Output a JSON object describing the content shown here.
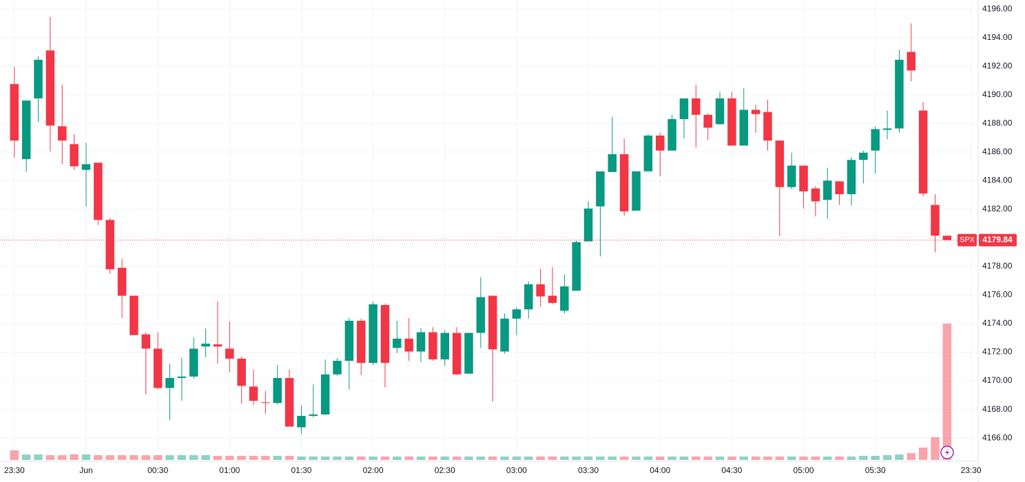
{
  "chart_data": {
    "type": "candlestick",
    "symbol": "SPX",
    "last_price": 4179.84,
    "up_color": "#089981",
    "down_color": "#f23645",
    "grid": true,
    "xlim": [
      -1.2,
      80.6
    ],
    "xticks": [
      {
        "value": 0,
        "label": "23:30"
      },
      {
        "value": 6,
        "label": "Jun"
      },
      {
        "value": 12,
        "label": "00:30"
      },
      {
        "value": 18,
        "label": "01:00"
      },
      {
        "value": 24,
        "label": "01:30"
      },
      {
        "value": 30,
        "label": "02:00"
      },
      {
        "value": 36,
        "label": "02:30"
      },
      {
        "value": 42,
        "label": "03:00"
      },
      {
        "value": 48,
        "label": "03:30"
      },
      {
        "value": 54,
        "label": "04:00"
      },
      {
        "value": 60,
        "label": "04:30"
      },
      {
        "value": 66,
        "label": "05:00"
      },
      {
        "value": 72,
        "label": "05:30"
      },
      {
        "value": 80,
        "label": "23:30"
      }
    ],
    "ylim": [
      4164.37,
      4196.63
    ],
    "yticks": [
      {
        "value": 4166,
        "label": "4166.00"
      },
      {
        "value": 4168,
        "label": "4168.00"
      },
      {
        "value": 4170,
        "label": "4170.00"
      },
      {
        "value": 4172,
        "label": "4172.00"
      },
      {
        "value": 4174,
        "label": "4174.00"
      },
      {
        "value": 4176,
        "label": "4176.00"
      },
      {
        "value": 4178,
        "label": "4178.00"
      },
      {
        "value": 4180,
        "label": "4180.00"
      },
      {
        "value": 4182,
        "label": "4182.00"
      },
      {
        "value": 4184,
        "label": "4184.00"
      },
      {
        "value": 4186,
        "label": "4186.00"
      },
      {
        "value": 4188,
        "label": "4188.00"
      },
      {
        "value": 4190,
        "label": "4190.00"
      },
      {
        "value": 4192,
        "label": "4192.00"
      },
      {
        "value": 4194,
        "label": "4194.00"
      },
      {
        "value": 4196,
        "label": "4196.00"
      }
    ],
    "open": [
      4190.75,
      4185.5,
      4189.75,
      4193.1,
      4187.8,
      4186.55,
      4184.75,
      4185.25,
      4181.25,
      4177.9,
      4175.95,
      4173.25,
      4172.25,
      4169.5,
      4170.2,
      4170.3,
      4172.4,
      4172.55,
      4172.25,
      4171.55,
      4169.6,
      4168.5,
      4168.45,
      4170.2,
      4166.75,
      4167.55,
      4167.65,
      4170.45,
      4171.4,
      4174.2,
      4171.25,
      4175.3,
      4172.3,
      4172.95,
      4172.05,
      4173.4,
      4171.5,
      4173.35,
      4170.5,
      4173.35,
      4175.95,
      4172.05,
      4174.35,
      4175.0,
      4176.75,
      4175.95,
      4174.9,
      4176.3,
      4179.75,
      4182.2,
      4184.6,
      4185.85,
      4181.9,
      4184.65,
      4187.15,
      4186.1,
      4188.3,
      4189.75,
      4188.6,
      4187.95,
      4189.75,
      4186.45,
      4188.95,
      4188.8,
      4186.8,
      4183.55,
      4185.05,
      4183.45,
      4182.65,
      4183.95,
      4183.05,
      4185.45,
      4186.1,
      4187.55,
      4187.65,
      4193.0,
      4188.9,
      4182.3,
      4180.15
    ],
    "high": [
      4191.95,
      4189.6,
      4192.7,
      4195.45,
      4190.7,
      4187.25,
      4186.65,
      4185.25,
      4181.4,
      4178.55,
      4175.95,
      4173.4,
      4173.4,
      4171.2,
      4171.6,
      4173.05,
      4173.65,
      4175.55,
      4174.15,
      4171.7,
      4170.8,
      4169.3,
      4171.1,
      4170.8,
      4168.3,
      4169.75,
      4171.5,
      4171.6,
      4174.4,
      4174.35,
      4175.55,
      4175.4,
      4174.2,
      4174.4,
      4173.7,
      4173.75,
      4173.55,
      4173.75,
      4173.35,
      4177.25,
      4175.95,
      4174.7,
      4175.15,
      4176.95,
      4177.85,
      4177.95,
      4177.45,
      4179.8,
      4182.55,
      4184.65,
      4188.45,
      4186.95,
      4184.65,
      4187.25,
      4187.35,
      4188.6,
      4189.75,
      4190.7,
      4188.7,
      4190.2,
      4190.2,
      4190.45,
      4189.3,
      4189.65,
      4186.8,
      4185.95,
      4185.05,
      4183.6,
      4184.9,
      4183.95,
      4185.65,
      4186.1,
      4187.8,
      4188.9,
      4193.15,
      4195.0,
      4189.5,
      4183.05,
      4180.15
    ],
    "low": [
      4185.6,
      4184.6,
      4188.1,
      4186.05,
      4185.15,
      4184.75,
      4182.2,
      4180.9,
      4177.5,
      4174.4,
      4173.2,
      4169.05,
      4169.4,
      4167.25,
      4168.6,
      4170.15,
      4171.65,
      4171.2,
      4170.6,
      4168.4,
      4168.3,
      4167.7,
      4168.35,
      4166.8,
      4166.3,
      4167.45,
      4167.6,
      4170.35,
      4169.4,
      4170.4,
      4171.1,
      4169.55,
      4171.95,
      4171.4,
      4171.3,
      4171.4,
      4171.05,
      4170.4,
      4170.5,
      4172.3,
      4168.55,
      4171.9,
      4173.2,
      4174.35,
      4175.2,
      4175.35,
      4174.7,
      4176.3,
      4179.75,
      4178.7,
      4184.6,
      4181.55,
      4181.9,
      4184.65,
      4184.3,
      4186.1,
      4186.95,
      4186.3,
      4186.85,
      4187.9,
      4186.45,
      4186.45,
      4187.35,
      4186.1,
      4180.1,
      4183.4,
      4182.05,
      4181.5,
      4181.35,
      4182.3,
      4182.25,
      4183.8,
      4184.5,
      4186.9,
      4187.35,
      4190.95,
      4182.9,
      4179.0,
      4179.84
    ],
    "close": [
      4186.8,
      4189.6,
      4192.45,
      4187.85,
      4186.8,
      4185.0,
      4185.15,
      4181.25,
      4177.8,
      4175.95,
      4173.2,
      4172.25,
      4169.5,
      4170.2,
      4170.3,
      4172.25,
      4172.6,
      4172.4,
      4171.55,
      4169.65,
      4168.6,
      4168.45,
      4170.2,
      4166.8,
      4167.55,
      4167.65,
      4170.45,
      4171.4,
      4174.2,
      4171.25,
      4175.35,
      4171.25,
      4172.95,
      4172.05,
      4173.4,
      4171.5,
      4173.35,
      4170.45,
      4173.35,
      4175.85,
      4172.2,
      4174.35,
      4175.0,
      4176.75,
      4175.9,
      4175.45,
      4176.6,
      4179.7,
      4182.05,
      4184.65,
      4185.85,
      4181.85,
      4184.65,
      4187.15,
      4186.1,
      4188.3,
      4189.75,
      4188.6,
      4187.7,
      4189.75,
      4186.45,
      4188.95,
      4188.65,
      4186.8,
      4183.55,
      4185.05,
      4183.25,
      4182.55,
      4184.0,
      4183.05,
      4185.45,
      4185.95,
      4187.6,
      4187.65,
      4192.45,
      4191.7,
      4183.1,
      4180.15,
      4179.84
    ],
    "volume": [
      14,
      8,
      8,
      7,
      7,
      8,
      8,
      7,
      7,
      7,
      7,
      7,
      7,
      7,
      7,
      7,
      7,
      6,
      6,
      6,
      6,
      6,
      6,
      6,
      5,
      5,
      5,
      5,
      5,
      5,
      5,
      5,
      5,
      5,
      5,
      5,
      5,
      5,
      5,
      5,
      5,
      5,
      5,
      5,
      5,
      5,
      5,
      5,
      5,
      5,
      5,
      5,
      5,
      5,
      5,
      5,
      5,
      5,
      5,
      5,
      5,
      5,
      5,
      5,
      5,
      5,
      5,
      5,
      5,
      5,
      5,
      6,
      6,
      7,
      8,
      10,
      18,
      33,
      198
    ]
  }
}
